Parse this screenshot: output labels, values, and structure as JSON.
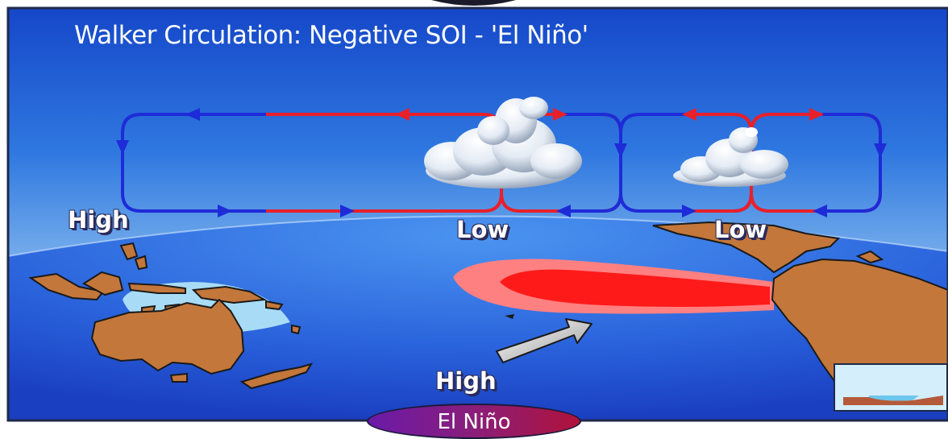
{
  "title": "Walker Circulation: Negative SOI - 'El Niño'",
  "pressure_labels": {
    "high_west": "High",
    "low_central": "Low",
    "low_east": "Low",
    "high_south": "High"
  },
  "badge_label": "El Niño",
  "colors": {
    "sky_top": "#1547c9",
    "sky_bottom": "#cfe3f7",
    "ocean": "#2f6fe0",
    "land": "#c4773b",
    "cold_flow": "#1e2bd8",
    "warm_flow": "#e8202a",
    "warm_pool": "#ff1a1a"
  },
  "icons": [
    "cloud-icon",
    "arrow-icon"
  ]
}
